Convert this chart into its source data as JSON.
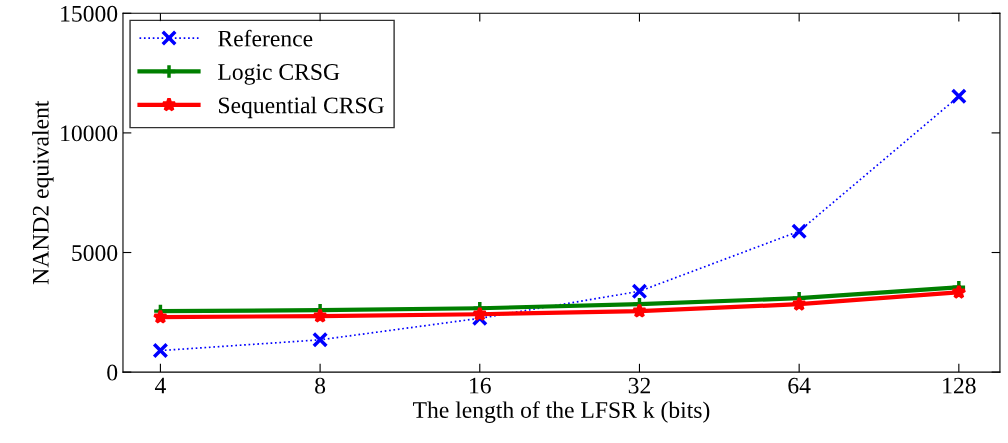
{
  "chart_data": {
    "type": "line",
    "xlabel": "The length of the LFSR k (bits)",
    "ylabel": "NAND2 equivalent",
    "x": [
      4,
      8,
      16,
      32,
      64,
      128
    ],
    "log": "x",
    "xlim": [
      3.4,
      153
    ],
    "xticks": [
      4,
      8,
      16,
      32,
      64,
      128
    ],
    "ylim": [
      0,
      15000
    ],
    "yticks": [
      0,
      5000,
      10000,
      15000
    ],
    "grid": false,
    "legend": "top left",
    "series": [
      {
        "name": "Reference",
        "color": "#0000ff",
        "marker": "cross",
        "line_style": "dotted",
        "values": [
          900,
          1350,
          2250,
          3380,
          5890,
          11530
        ]
      },
      {
        "name": "Logic CRSG",
        "color": "#007f00",
        "marker": "plus",
        "line_style": "solid",
        "values": [
          2550,
          2590,
          2670,
          2840,
          3090,
          3550
        ]
      },
      {
        "name": "Sequential CRSG",
        "color": "#ff0000",
        "marker": "star",
        "line_style": "solid",
        "values": [
          2300,
          2340,
          2420,
          2550,
          2840,
          3340
        ]
      }
    ]
  }
}
